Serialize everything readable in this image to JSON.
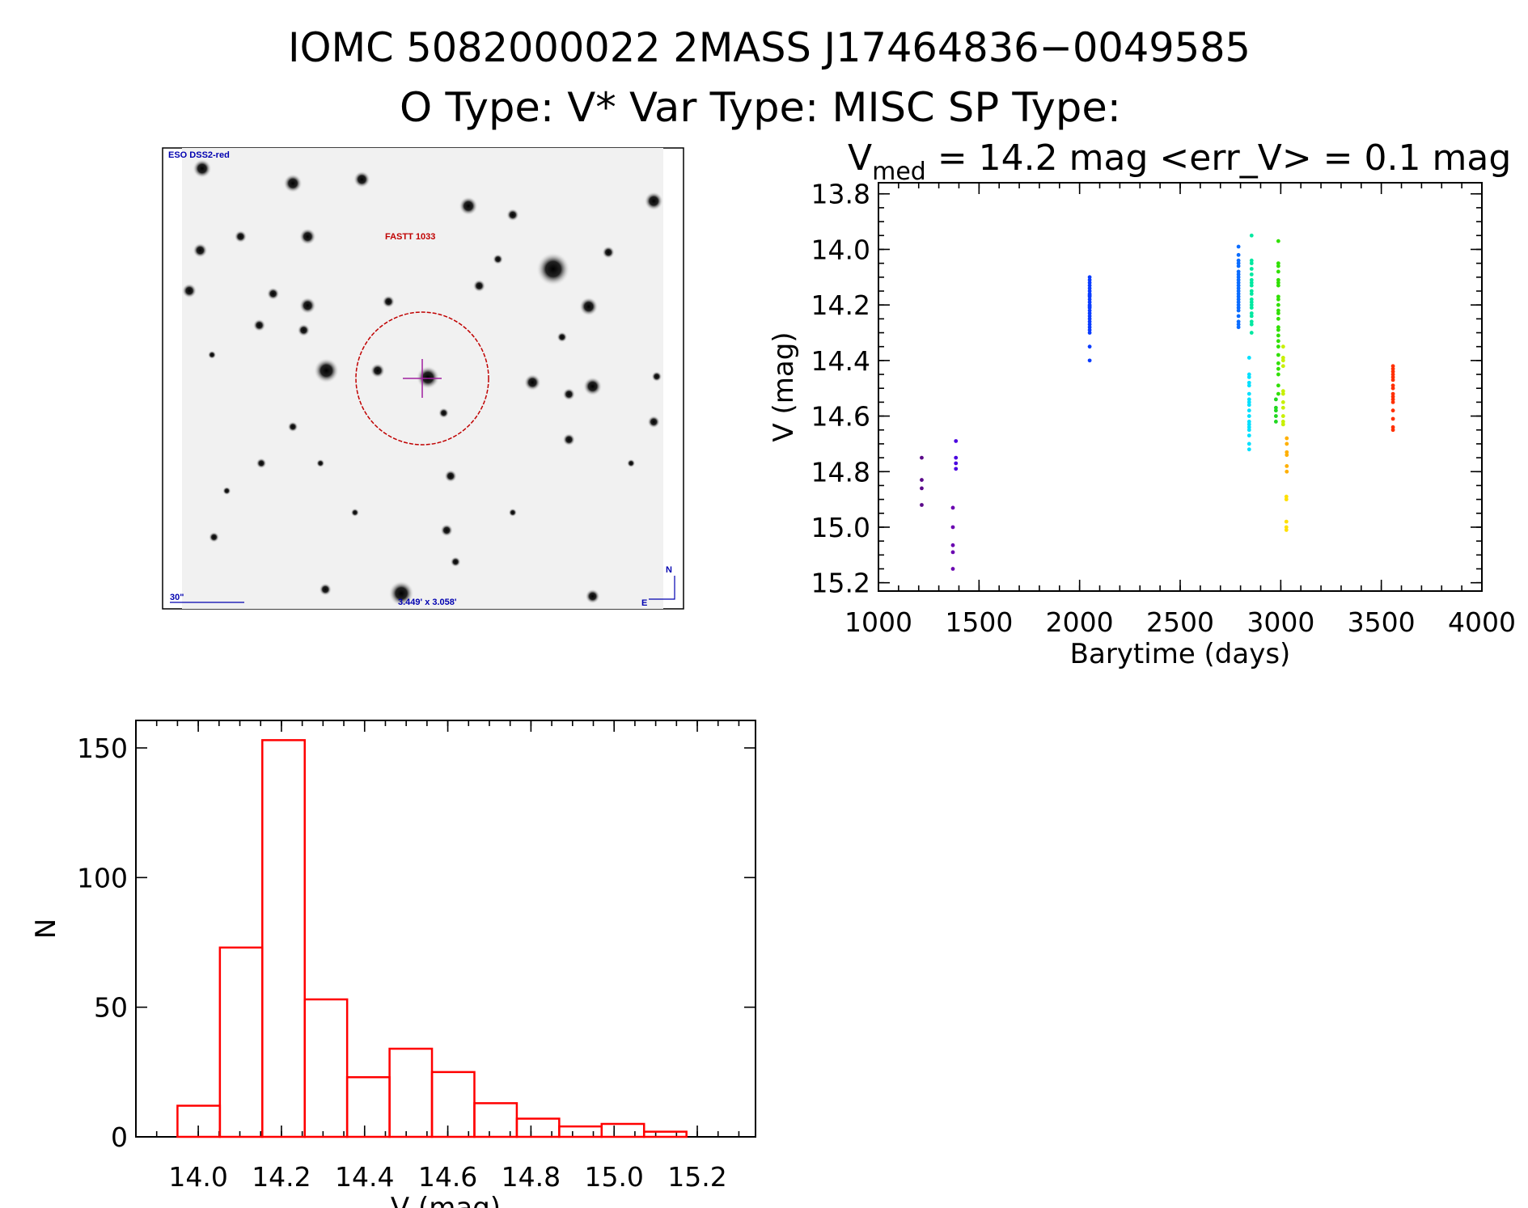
{
  "header": {
    "title": "IOMC 5082000022    2MASS J17464836−0049585",
    "subtitle": "O Type: V*   Var Type: MISC   SP Type:",
    "stats_symbol": "V",
    "stats_subscript": "med",
    "stats_text": " = 14.2 mag <err_V> = 0.1 mag"
  },
  "stamp": {
    "survey_label": "ESO DSS2-red",
    "object_label": "FASTT 1033",
    "scale_label": "30\"",
    "fov_label": "3.449' x 3.058'",
    "north_label": "N",
    "east_label": "E",
    "circle_color": "#c00000",
    "crosshair_color": "#a020a0",
    "label_color": "#0000b0"
  },
  "chart_data": [
    {
      "type": "scatter",
      "xlabel": "Barytime (days)",
      "ylabel": "V (mag)",
      "xlim": [
        1000,
        4000
      ],
      "ylim": [
        13.76,
        15.23
      ],
      "y_inverted": true,
      "xticks": [
        1000,
        1500,
        2000,
        2500,
        3000,
        3500,
        4000
      ],
      "xtick_labels": [
        "1000",
        "1500",
        "2000",
        "2500",
        "3000",
        "3500",
        "4000"
      ],
      "yticks": [
        13.8,
        14.0,
        14.2,
        14.4,
        14.6,
        14.8,
        15.0,
        15.2
      ],
      "ytick_labels": [
        "13.8",
        "14.0",
        "14.2",
        "14.4",
        "14.6",
        "14.8",
        "15.0",
        "15.2"
      ],
      "grid": false,
      "groups": [
        {
          "x": 1215,
          "color": "#5b0a8a",
          "y": [
            14.75,
            14.83,
            14.86,
            14.92
          ]
        },
        {
          "x": 1370,
          "color": "#6a00b0",
          "y": [
            14.93,
            15.0,
            15.065,
            15.09,
            15.15
          ]
        },
        {
          "x": 1385,
          "color": "#4a00e0",
          "y": [
            14.69,
            14.75,
            14.77,
            14.79
          ]
        },
        {
          "x": 2050,
          "color": "#0a3cff",
          "y": [
            14.1,
            14.11,
            14.12,
            14.13,
            14.14,
            14.15,
            14.16,
            14.165,
            14.17,
            14.18,
            14.19,
            14.2,
            14.205,
            14.21,
            14.22,
            14.23,
            14.24,
            14.25,
            14.26,
            14.27,
            14.28,
            14.29,
            14.3,
            14.35,
            14.4
          ]
        },
        {
          "x": 2790,
          "color": "#0a6cff",
          "y": [
            13.99,
            14.02,
            14.04,
            14.05,
            14.06,
            14.08,
            14.09,
            14.1,
            14.11,
            14.12,
            14.13,
            14.14,
            14.15,
            14.16,
            14.17,
            14.18,
            14.19,
            14.2,
            14.21,
            14.22,
            14.24,
            14.26,
            14.27,
            14.28
          ]
        },
        {
          "x": 2855,
          "color": "#00e8a0",
          "y": [
            13.95,
            14.04,
            14.05,
            14.07,
            14.09,
            14.11,
            14.12,
            14.13,
            14.15,
            14.16,
            14.18,
            14.19,
            14.2,
            14.21,
            14.23,
            14.24,
            14.26,
            14.27,
            14.3
          ]
        },
        {
          "x": 2843,
          "color": "#00e0ff",
          "y": [
            14.39,
            14.45,
            14.46,
            14.48,
            14.49,
            14.52,
            14.54,
            14.55,
            14.56,
            14.58,
            14.6,
            14.62,
            14.63,
            14.64,
            14.65,
            14.67,
            14.7,
            14.72
          ]
        },
        {
          "x": 2988,
          "color": "#30e000",
          "y": [
            13.97,
            14.05,
            14.06,
            14.08,
            14.11,
            14.12,
            14.13,
            14.17,
            14.18,
            14.2,
            14.22,
            14.23,
            14.25,
            14.28,
            14.29,
            14.31,
            14.33,
            14.35,
            14.38,
            14.41,
            14.43,
            14.45,
            14.49,
            14.52
          ]
        },
        {
          "x": 2976,
          "color": "#20d820",
          "y": [
            14.54,
            14.57,
            14.58,
            14.6,
            14.62
          ]
        },
        {
          "x": 3012,
          "color": "#c8f000",
          "y": [
            14.35,
            14.39,
            14.4,
            14.42,
            14.51,
            14.52,
            14.55,
            14.57,
            14.6,
            14.62,
            14.63
          ]
        },
        {
          "x": 3030,
          "color": "#ffb000",
          "y": [
            14.68,
            14.7,
            14.73,
            14.74,
            14.78,
            14.8
          ]
        },
        {
          "x": 3028,
          "color": "#ffe000",
          "y": [
            14.89,
            14.9,
            14.98,
            15.0,
            15.01
          ]
        },
        {
          "x": 3558,
          "color": "#ff3000",
          "y": [
            14.42,
            14.43,
            14.44,
            14.45,
            14.46,
            14.47,
            14.49,
            14.5,
            14.52,
            14.53,
            14.54,
            14.55,
            14.58,
            14.61,
            14.64,
            14.65
          ]
        }
      ]
    },
    {
      "type": "bar",
      "subtype": "histogram",
      "xlabel": "V (mag)",
      "ylabel": "N",
      "xlim": [
        13.85,
        15.34
      ],
      "ylim": [
        0,
        160.6
      ],
      "bin_start": 13.95,
      "bin_width": 0.102,
      "values": [
        12,
        73,
        153,
        53,
        23,
        34,
        25,
        13,
        7,
        4,
        5,
        2
      ],
      "color": "#ff0000",
      "xticks": [
        14.0,
        14.2,
        14.4,
        14.6,
        14.8,
        15.0,
        15.2
      ],
      "xtick_labels": [
        "14.0",
        "14.2",
        "14.4",
        "14.6",
        "14.8",
        "15.0",
        "15.2"
      ],
      "yticks": [
        0,
        50,
        100,
        150
      ],
      "ytick_labels": [
        "0",
        "50",
        "100",
        "150"
      ],
      "grid": false
    }
  ]
}
